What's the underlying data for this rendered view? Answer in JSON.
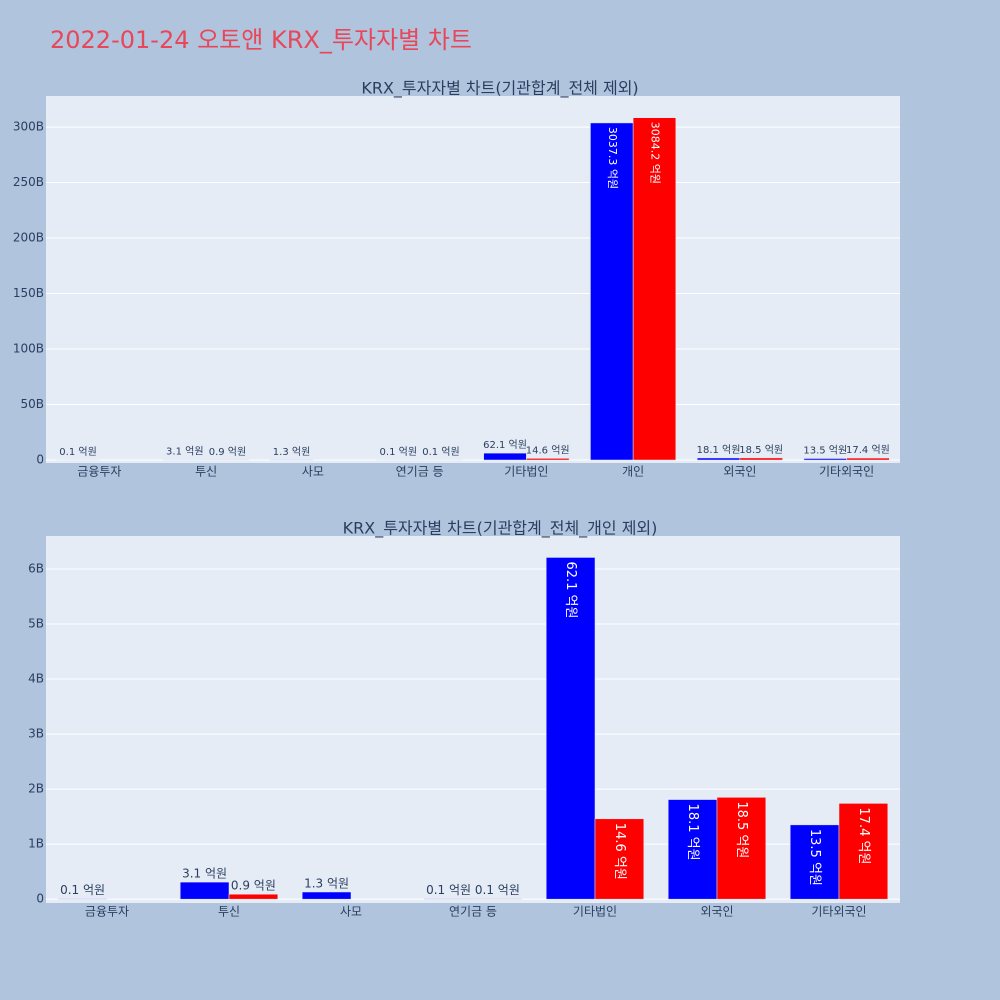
{
  "title": "2022-01-24 오토앤 KRX_투자자별 차트",
  "chart_data": [
    {
      "type": "bar",
      "title": "KRX_투자자별 차트(기관합계_전체 제외)",
      "categories": [
        "금융투자",
        "투신",
        "사모",
        "연기금 등",
        "기타법인",
        "개인",
        "외국인",
        "기타외국인"
      ],
      "series": [
        {
          "color": "#0000ff",
          "values": [
            10000000,
            310000000,
            130000000,
            10000000,
            6210000000,
            303730000000,
            1810000000,
            1350000000
          ],
          "value_labels": [
            "0.1 억원",
            "3.1 억원",
            "1.3 억원",
            "0.1 억원",
            "62.1 억원",
            "3037.3 억원",
            "18.1 억원",
            "13.5 억원"
          ]
        },
        {
          "color": "#ff0000",
          "values": [
            null,
            90000000,
            null,
            10000000,
            1460000000,
            308420000000,
            1850000000,
            1740000000
          ],
          "value_labels": [
            null,
            "0.9 억원",
            null,
            "0.1 억원",
            "14.6 억원",
            "3084.2 억원",
            "18.5 억원",
            "17.4 억원"
          ]
        }
      ],
      "ylim": [
        -2700000000,
        328000000000
      ],
      "yticks": [
        0,
        {
          "value": 50000000000,
          "label": "50B"
        },
        {
          "value": 100000000000,
          "label": "100B"
        },
        {
          "value": 150000000000,
          "label": "150B"
        },
        {
          "value": 200000000000,
          "label": "200B"
        },
        {
          "value": 250000000000,
          "label": "250B"
        },
        {
          "value": 300000000000,
          "label": "300B"
        }
      ],
      "grid": true
    },
    {
      "type": "bar",
      "title": "KRX_투자자별 차트(기관합계_전체_개인 제외)",
      "categories": [
        "금융투자",
        "투신",
        "사모",
        "연기금 등",
        "기타법인",
        "외국인",
        "기타외국인"
      ],
      "series": [
        {
          "color": "#0000ff",
          "values": [
            10000000,
            310000000,
            130000000,
            10000000,
            6210000000,
            1810000000,
            1350000000
          ],
          "value_labels": [
            "0.1 억원",
            "3.1 억원",
            "1.3 억원",
            "0.1 억원",
            "62.1 억원",
            "18.1 억원",
            "13.5 억원"
          ]
        },
        {
          "color": "#ff0000",
          "values": [
            null,
            90000000,
            null,
            10000000,
            1460000000,
            1850000000,
            1740000000
          ],
          "value_labels": [
            null,
            "0.9 억원",
            null,
            "0.1 억원",
            "14.6 억원",
            "18.5 억원",
            "17.4 억원"
          ]
        }
      ],
      "ylim": [
        -70000000,
        6600000000
      ],
      "yticks": [
        0,
        {
          "value": 1000000000,
          "label": "1B"
        },
        {
          "value": 2000000000,
          "label": "2B"
        },
        {
          "value": 3000000000,
          "label": "3B"
        },
        {
          "value": 4000000000,
          "label": "4B"
        },
        {
          "value": 5000000000,
          "label": "5B"
        },
        {
          "value": 6000000000,
          "label": "6B"
        }
      ],
      "grid": true
    }
  ]
}
